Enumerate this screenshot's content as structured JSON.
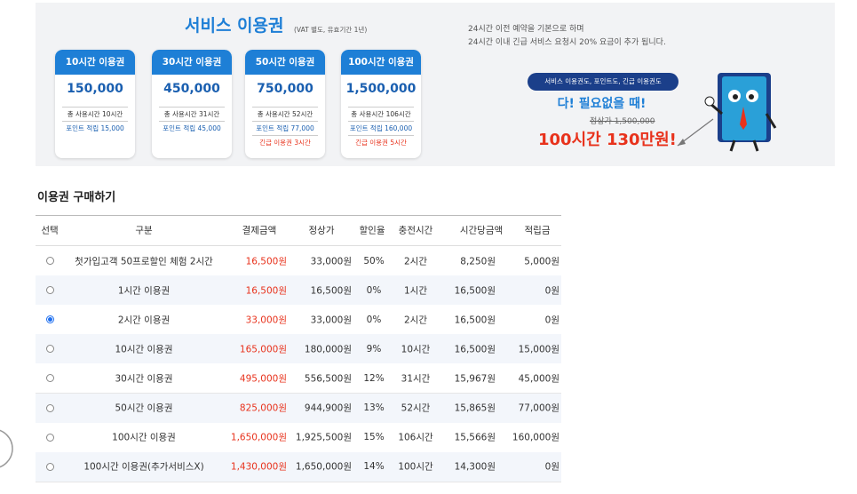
{
  "banner": {
    "title": "서비스 이용권",
    "subtitle": "(VAT 별도, 유효기간 1년)",
    "cards": [
      {
        "name": "10시간 이용권",
        "price": "150,000",
        "lines": [
          "총 사용시간 10시간",
          "포인트 적립 15,000"
        ]
      },
      {
        "name": "30시간 이용권",
        "price": "450,000",
        "lines": [
          "총 사용시간 31시간",
          "포인트 적립 45,000"
        ]
      },
      {
        "name": "50시간 이용권",
        "price": "750,000",
        "lines": [
          "총 사용시간 52시간",
          "포인트 적립 77,000",
          "긴급 이용권 3시간"
        ]
      },
      {
        "name": "100시간 이용권",
        "price": "1,500,000",
        "lines": [
          "총 사용시간 106시간",
          "포인트 적립 160,000",
          "긴급 이용권 5시간"
        ]
      }
    ],
    "notes": [
      "24시간 이전 예약을 기본으로 하며",
      "24시간 이내 긴급 서비스 요청시 20% 요금이 추가 됩니다."
    ],
    "promo": {
      "pill": "서비스 이용권도, 포인트도, 긴급 이용권도",
      "headline": "다! 필요없을 때!",
      "original_price": "정상가 1,500,000",
      "offer": "100시간 130만원!"
    }
  },
  "section_title": "이용권 구매하기",
  "table": {
    "headers": [
      "선택",
      "구분",
      "결제금액",
      "정상가",
      "할인율",
      "충전시간",
      "시간당금액",
      "적립금"
    ],
    "rows": [
      {
        "selected": false,
        "cells": [
          "첫가입고객 50프로할인 체험 2시간",
          "16,500원",
          "33,000원",
          "50%",
          "2시간",
          "8,250원",
          "5,000원"
        ]
      },
      {
        "selected": false,
        "cells": [
          "1시간 이용권",
          "16,500원",
          "16,500원",
          "0%",
          "1시간",
          "16,500원",
          "0원"
        ]
      },
      {
        "selected": true,
        "cells": [
          "2시간 이용권",
          "33,000원",
          "33,000원",
          "0%",
          "2시간",
          "16,500원",
          "0원"
        ]
      },
      {
        "selected": false,
        "cells": [
          "10시간 이용권",
          "165,000원",
          "180,000원",
          "9%",
          "10시간",
          "16,500원",
          "15,000원"
        ]
      },
      {
        "selected": false,
        "cells": [
          "30시간 이용권",
          "495,000원",
          "556,500원",
          "12%",
          "31시간",
          "15,967원",
          "45,000원"
        ]
      },
      {
        "selected": false,
        "cells": [
          "50시간 이용권",
          "825,000원",
          "944,900원",
          "13%",
          "52시간",
          "15,865원",
          "77,000원"
        ]
      },
      {
        "selected": false,
        "cells": [
          "100시간 이용권",
          "1,650,000원",
          "1,925,500원",
          "15%",
          "106시간",
          "15,566원",
          "160,000원"
        ]
      },
      {
        "selected": false,
        "cells": [
          "100시간 이용권(추가서비스X)",
          "1,430,000원",
          "1,650,000원",
          "14%",
          "100시간",
          "14,300원",
          "0원"
        ]
      }
    ]
  }
}
